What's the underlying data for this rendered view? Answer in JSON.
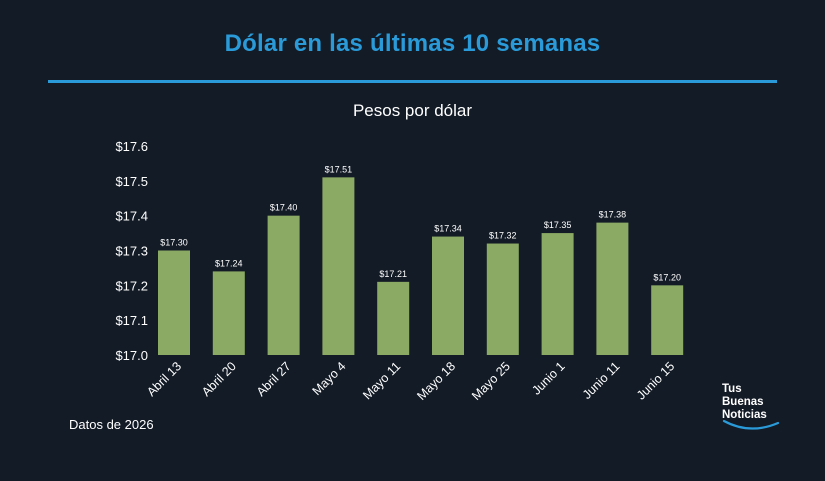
{
  "header": {
    "title": "Dólar en las últimas 10 semanas",
    "subtitle": "Pesos por dólar"
  },
  "footer": {
    "note": "Datos de 2026",
    "logo": {
      "line1": "Tus",
      "line2": "Buenas",
      "line3": "Noticias"
    }
  },
  "colors": {
    "background": "#131b26",
    "accent": "#2a9bd8",
    "bar": "#8baa64"
  },
  "chart_data": {
    "type": "bar",
    "title": "Pesos por dólar",
    "categories": [
      "Abril 13",
      "Abril 20",
      "Abril 27",
      "Mayo 4",
      "Mayo 11",
      "Mayo 18",
      "Mayo 25",
      "Junio 1",
      "Junio 11",
      "Junio 15"
    ],
    "values": [
      17.3,
      17.24,
      17.4,
      17.51,
      17.21,
      17.34,
      17.32,
      17.35,
      17.38,
      17.2
    ],
    "value_labels": [
      "$17.30",
      "$17.24",
      "$17.40",
      "$17.51",
      "$17.21",
      "$17.34",
      "$17.32",
      "$17.35",
      "$17.38",
      "$17.20"
    ],
    "yticks": [
      17.0,
      17.1,
      17.2,
      17.3,
      17.4,
      17.5,
      17.6
    ],
    "ytick_labels": [
      "$17.0",
      "$17.1",
      "$17.2",
      "$17.3",
      "$17.4",
      "$17.5",
      "$17.6"
    ],
    "ylim": [
      17.0,
      17.6
    ],
    "grid": false,
    "legend": false
  }
}
